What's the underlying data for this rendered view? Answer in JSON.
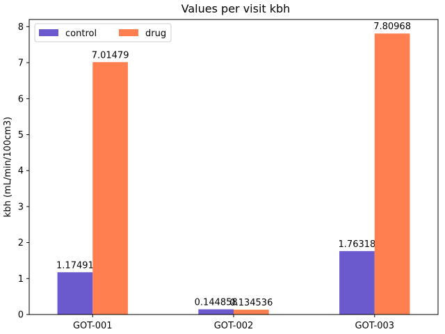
{
  "chart_data": {
    "type": "bar",
    "title": "Values per visit kbh",
    "xlabel": "",
    "ylabel": "kbh (mL/min/100cm3)",
    "categories": [
      "GOT-001",
      "GOT-002",
      "GOT-003"
    ],
    "series": [
      {
        "name": "control",
        "color": "#6a5acd",
        "values": [
          1.17491,
          0.144858,
          1.76318
        ],
        "labels": [
          "1.17491",
          "0.144858",
          "1.76318"
        ]
      },
      {
        "name": "drug",
        "color": "#ff7f50",
        "values": [
          7.01479,
          0.134536,
          7.80968
        ],
        "labels": [
          "7.01479",
          "0.134536",
          "7.80968"
        ]
      }
    ],
    "ylim": [
      0,
      8.2
    ],
    "yticks": [
      "0",
      "1",
      "2",
      "3",
      "4",
      "5",
      "6",
      "7",
      "8"
    ],
    "grid": false,
    "legend": "upper-left"
  }
}
